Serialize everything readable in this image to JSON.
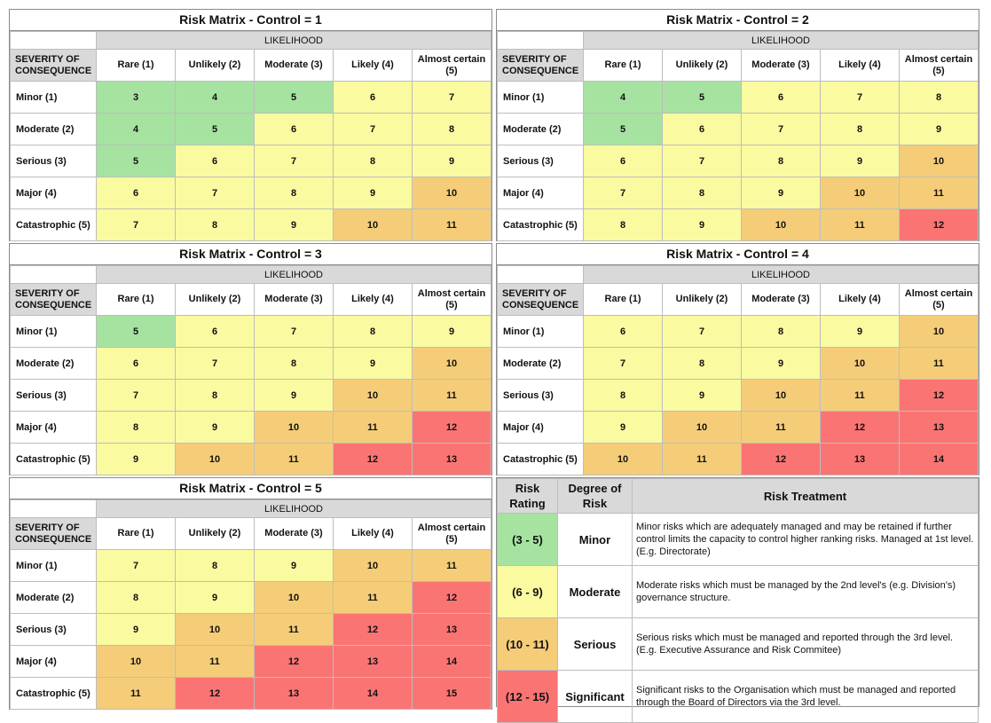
{
  "likelihood_label": "LIKELIHOOD",
  "severity_label": "SEVERITY OF\nCONSEQUENCE",
  "columns": [
    "Rare (1)",
    "Unlikely (2)",
    "Moderate (3)",
    "Likely (4)",
    "Almost certain (5)"
  ],
  "rows": [
    "Minor (1)",
    "Moderate (2)",
    "Serious (3)",
    "Major (4)",
    "Catastrophic (5)"
  ],
  "colors": {
    "green": "#a6e3a1",
    "yellow": "#fafaa0",
    "orange": "#f5cd78",
    "red": "#fa7474"
  },
  "matrices": [
    {
      "title": "Risk Matrix - Control = 1",
      "values": [
        [
          3,
          4,
          5,
          6,
          7
        ],
        [
          4,
          5,
          6,
          7,
          8
        ],
        [
          5,
          6,
          7,
          8,
          9
        ],
        [
          6,
          7,
          8,
          9,
          10
        ],
        [
          7,
          8,
          9,
          10,
          11
        ]
      ]
    },
    {
      "title": "Risk Matrix - Control = 2",
      "values": [
        [
          4,
          5,
          6,
          7,
          8
        ],
        [
          5,
          6,
          7,
          8,
          9
        ],
        [
          6,
          7,
          8,
          9,
          10
        ],
        [
          7,
          8,
          9,
          10,
          11
        ],
        [
          8,
          9,
          10,
          11,
          12
        ]
      ]
    },
    {
      "title": "Risk Matrix - Control = 3",
      "values": [
        [
          5,
          6,
          7,
          8,
          9
        ],
        [
          6,
          7,
          8,
          9,
          10
        ],
        [
          7,
          8,
          9,
          10,
          11
        ],
        [
          8,
          9,
          10,
          11,
          12
        ],
        [
          9,
          10,
          11,
          12,
          13
        ]
      ]
    },
    {
      "title": "Risk Matrix - Control = 4",
      "values": [
        [
          6,
          7,
          8,
          9,
          10
        ],
        [
          7,
          8,
          9,
          10,
          11
        ],
        [
          8,
          9,
          10,
          11,
          12
        ],
        [
          9,
          10,
          11,
          12,
          13
        ],
        [
          10,
          11,
          12,
          13,
          14
        ]
      ]
    },
    {
      "title": "Risk Matrix - Control = 5",
      "values": [
        [
          7,
          8,
          9,
          10,
          11
        ],
        [
          8,
          9,
          10,
          11,
          12
        ],
        [
          9,
          10,
          11,
          12,
          13
        ],
        [
          10,
          11,
          12,
          13,
          14
        ],
        [
          11,
          12,
          13,
          14,
          15
        ]
      ]
    }
  ],
  "legend": {
    "headers": {
      "rating": "Risk\nRating",
      "degree": "Degree of\nRisk",
      "treatment": "Risk Treatment"
    },
    "rows": [
      {
        "rating": "(3 - 5)",
        "degree": "Minor",
        "color": "green",
        "text": "Minor risks which are adequately managed and may be retained if further control limits the capacity to control higher ranking risks. Managed at 1st level. (E.g. Directorate)"
      },
      {
        "rating": "(6 - 9)",
        "degree": "Moderate",
        "color": "yellow",
        "text": "Moderate risks which must be managed by the 2nd level's (e.g. Division's) governance structure."
      },
      {
        "rating": "(10 - 11)",
        "degree": "Serious",
        "color": "orange",
        "text": "Serious risks which must be managed and reported through the 3rd level. (E.g. Executive Assurance and Risk Commitee)"
      },
      {
        "rating": "(12 - 15)",
        "degree": "Significant",
        "color": "red",
        "text": "Significant risks to the Organisation which must be managed and reported through the Board of Directors via the 3rd level."
      }
    ]
  }
}
